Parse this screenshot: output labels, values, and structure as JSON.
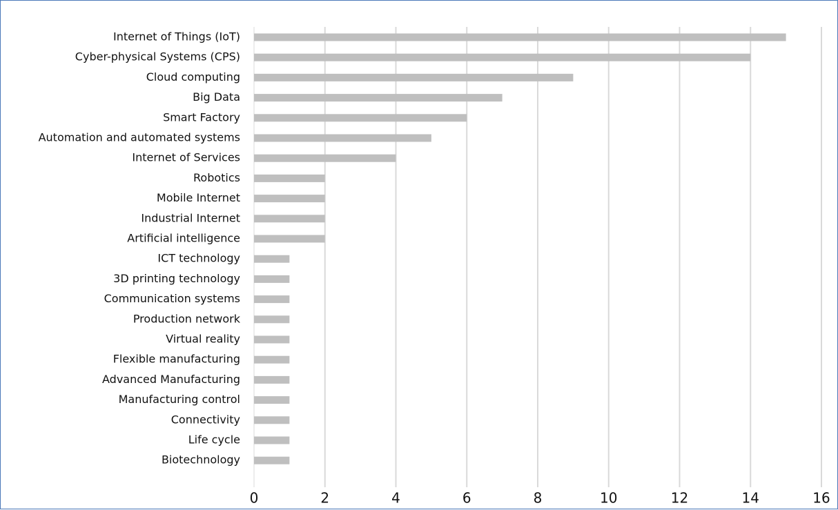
{
  "chart_data": {
    "type": "bar",
    "orientation": "horizontal",
    "title": "",
    "xlabel": "",
    "ylabel": "",
    "categories": [
      "Internet of Things (IoT)",
      "Cyber-physical Systems (CPS)",
      "Cloud computing",
      "Big Data",
      "Smart Factory",
      "Automation and automated systems",
      "Internet of Services",
      "Robotics",
      "Mobile Internet",
      "Industrial Internet",
      "Artificial intelligence",
      "ICT technology",
      "3D printing technology",
      "Communication systems",
      "Production network",
      "Virtual reality",
      "Flexible manufacturing",
      "Advanced Manufacturing",
      "Manufacturing control",
      "Connectivity",
      "Life cycle",
      "Biotechnology"
    ],
    "values": [
      15,
      14,
      9,
      7,
      6,
      5,
      4,
      2,
      2,
      2,
      2,
      1,
      1,
      1,
      1,
      1,
      1,
      1,
      1,
      1,
      1,
      1
    ],
    "xlim": [
      0,
      16
    ],
    "xticks": [
      "0",
      "2",
      "4",
      "6",
      "8",
      "10",
      "12",
      "14",
      "16"
    ],
    "grid": "vertical",
    "legend": "none",
    "colors": {
      "bar": "#bfbfbf",
      "grid": "#d9d9d9",
      "frame": "#4a78b8",
      "text": "#111111"
    }
  }
}
